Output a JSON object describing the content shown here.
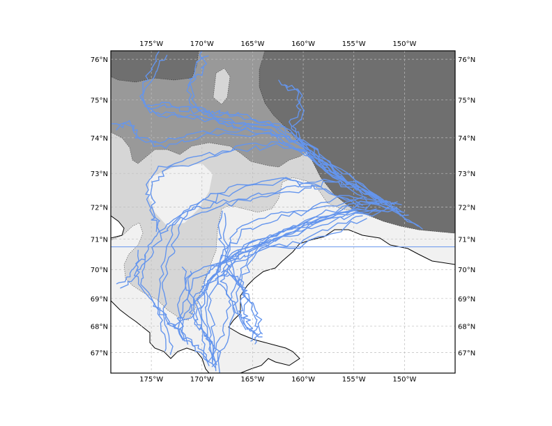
{
  "map": {
    "lon_range": [
      -179,
      -145
    ],
    "lat_range": [
      66.2,
      76.2
    ],
    "lon_ticks": [
      {
        "value": -175,
        "label": "175°W"
      },
      {
        "value": -170,
        "label": "170°W"
      },
      {
        "value": -165,
        "label": "165°W"
      },
      {
        "value": -160,
        "label": "160°W"
      },
      {
        "value": -155,
        "label": "155°W"
      },
      {
        "value": -150,
        "label": "150°W"
      }
    ],
    "lat_ticks": [
      {
        "value": 76,
        "label": "76°N"
      },
      {
        "value": 75,
        "label": "75°N"
      },
      {
        "value": 74,
        "label": "74°N"
      },
      {
        "value": 73,
        "label": "73°N"
      },
      {
        "value": 72,
        "label": "72°N"
      },
      {
        "value": 71,
        "label": "71°N"
      },
      {
        "value": 70,
        "label": "70°N"
      },
      {
        "value": 69,
        "label": "69°N"
      },
      {
        "value": 68,
        "label": "68°N"
      },
      {
        "value": 67,
        "label": "67°N"
      }
    ],
    "reference_line_lat": 70.75,
    "grid": true,
    "colors": {
      "track": "#6495ed",
      "ice_dark": "#6f6f6f",
      "ice_mid": "#999999",
      "ice_light": "#d6d6d6",
      "water": "#f1f1f1",
      "land": "#ffffff",
      "coast": "#000000",
      "grid": "#bdbdbd",
      "frame": "#000000"
    }
  }
}
